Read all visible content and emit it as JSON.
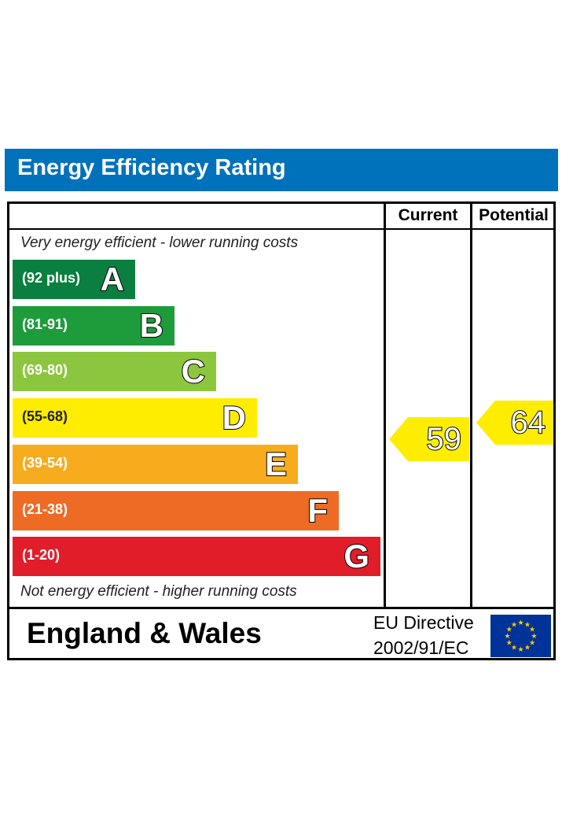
{
  "header": {
    "title": "Energy Efficiency Rating"
  },
  "columns": {
    "current": "Current",
    "potential": "Potential"
  },
  "notes": {
    "top": "Very energy efficient - lower running costs",
    "bottom": "Not energy efficient - higher running costs"
  },
  "chart_data": {
    "type": "bar",
    "categories": [
      "A",
      "B",
      "C",
      "D",
      "E",
      "F",
      "G"
    ],
    "ranges": [
      "(92 plus)",
      "(81-91)",
      "(69-80)",
      "(55-68)",
      "(39-54)",
      "(21-38)",
      "(1-20)"
    ],
    "colors": [
      "#008054",
      "#19b459",
      "#8dce46",
      "#ffd500",
      "#fcaa65",
      "#ef8023",
      "#e9153b"
    ],
    "band_colors": [
      "#0b7f3f",
      "#1e9c3c",
      "#8cc63e",
      "#ffed00",
      "#f7ac1e",
      "#ed6b25",
      "#e21d2a"
    ],
    "current": 59,
    "potential": 64
  },
  "footer": {
    "region": "England & Wales",
    "directive_line1": "EU Directive",
    "directive_line2": "2002/91/EC"
  },
  "icons": {
    "flag": "eu-flag-icon"
  }
}
